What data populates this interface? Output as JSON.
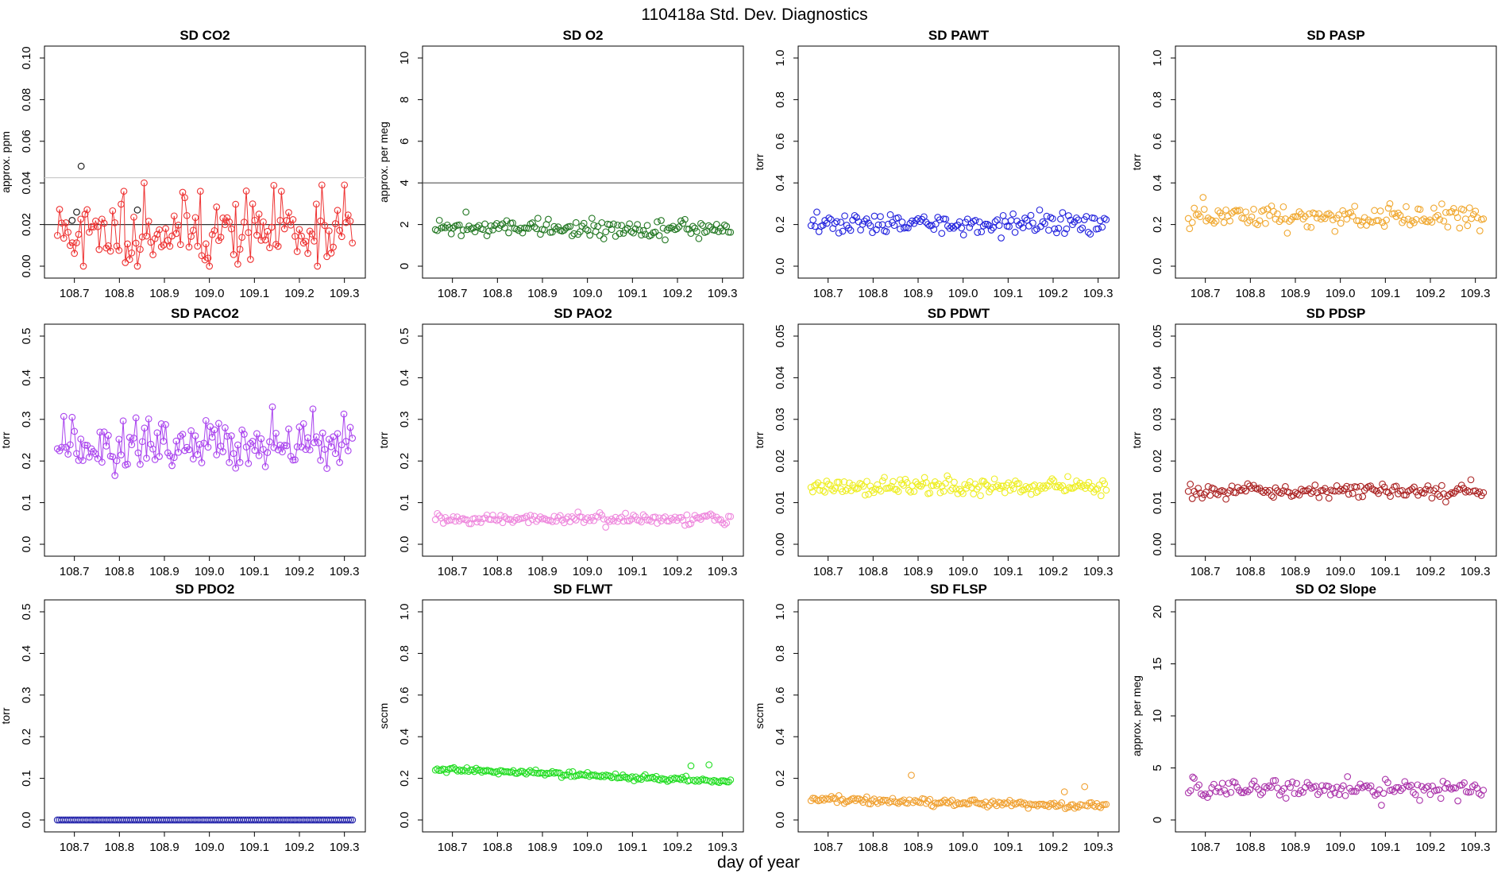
{
  "figure": {
    "title": "110418a   Std. Dev. Diagnostics",
    "xlabel": "day of year"
  },
  "chart_data": [
    {
      "type": "scatter",
      "title": "SD CO2",
      "ylabel": "approx. ppm",
      "color": "#ee3333",
      "ylim": [
        0,
        0.1
      ],
      "yticks": [
        0,
        0.02,
        0.04,
        0.06,
        0.08,
        0.1
      ],
      "ytick_labels": [
        "0.00",
        "0.02",
        "0.04",
        "0.06",
        "0.08",
        "0.10"
      ],
      "xlim": [
        108.66,
        109.32
      ],
      "xticks": [
        108.7,
        108.8,
        108.9,
        109.0,
        109.1,
        109.2,
        109.3
      ],
      "xtick_labels": [
        "108.7",
        "108.8",
        "108.9",
        "109.0",
        "109.1",
        "109.2",
        "109.3"
      ],
      "n_points": 140,
      "y_mean": 0.017,
      "y_noise": 0.008,
      "seed": 11,
      "connect": true,
      "hlines": [
        {
          "y": 0.02,
          "color": "#333333"
        },
        {
          "y": 0.0425,
          "color": "#cccccc"
        }
      ],
      "highlights": [
        {
          "x": 108.695,
          "y": 0.022,
          "color": "#222222"
        },
        {
          "x": 108.705,
          "y": 0.026,
          "color": "#222222"
        },
        {
          "x": 108.715,
          "y": 0.048,
          "color": "#222222"
        },
        {
          "x": 108.84,
          "y": 0.027,
          "color": "#222222"
        }
      ],
      "outliers": [
        {
          "x": 108.72,
          "y": 0.0
        },
        {
          "x": 108.84,
          "y": 0.0
        },
        {
          "x": 109.0,
          "y": 0.0
        },
        {
          "x": 109.24,
          "y": 0.0
        },
        {
          "x": 108.755,
          "y": 0.008
        },
        {
          "x": 108.99,
          "y": 0.003
        },
        {
          "x": 108.855,
          "y": 0.04
        },
        {
          "x": 108.81,
          "y": 0.036
        },
        {
          "x": 109.25,
          "y": 0.039
        },
        {
          "x": 109.3,
          "y": 0.039
        },
        {
          "x": 108.98,
          "y": 0.036
        },
        {
          "x": 109.16,
          "y": 0.036
        }
      ]
    },
    {
      "type": "scatter",
      "title": "SD O2",
      "ylabel": "approx. per meg",
      "color": "#227722",
      "ylim": [
        0,
        10
      ],
      "yticks": [
        0,
        2,
        4,
        6,
        8,
        10
      ],
      "ytick_labels": [
        "0",
        "2",
        "4",
        "6",
        "8",
        "10"
      ],
      "xlim": [
        108.66,
        109.32
      ],
      "xticks": [
        108.7,
        108.8,
        108.9,
        109.0,
        109.1,
        109.2,
        109.3
      ],
      "xtick_labels": [
        "108.7",
        "108.8",
        "108.9",
        "109.0",
        "109.1",
        "109.2",
        "109.3"
      ],
      "n_points": 150,
      "y_mean": 1.8,
      "y_noise": 0.18,
      "seed": 22,
      "connect": false,
      "hlines": [
        {
          "y": 4,
          "color": "#555555"
        }
      ],
      "highlights": [],
      "outliers": [
        {
          "x": 108.73,
          "y": 2.6
        },
        {
          "x": 108.89,
          "y": 2.3
        },
        {
          "x": 109.01,
          "y": 2.3
        }
      ]
    },
    {
      "type": "scatter",
      "title": "SD PAWT",
      "ylabel": "torr",
      "color": "#2222dd",
      "ylim": [
        0,
        1
      ],
      "yticks": [
        0,
        0.2,
        0.4,
        0.6,
        0.8,
        1.0
      ],
      "ytick_labels": [
        "0.0",
        "0.2",
        "0.4",
        "0.6",
        "0.8",
        "1.0"
      ],
      "xlim": [
        108.66,
        109.32
      ],
      "xticks": [
        108.7,
        108.8,
        108.9,
        109.0,
        109.1,
        109.2,
        109.3
      ],
      "xtick_labels": [
        "108.7",
        "108.8",
        "108.9",
        "109.0",
        "109.1",
        "109.2",
        "109.3"
      ],
      "n_points": 150,
      "y_mean": 0.2,
      "y_noise": 0.022,
      "seed": 33,
      "connect": false,
      "hlines": [],
      "highlights": [],
      "outliers": [
        {
          "x": 108.675,
          "y": 0.26
        },
        {
          "x": 109.17,
          "y": 0.27
        }
      ]
    },
    {
      "type": "scatter",
      "title": "SD PASP",
      "ylabel": "torr",
      "color": "#f0a830",
      "ylim": [
        0,
        1
      ],
      "yticks": [
        0,
        0.2,
        0.4,
        0.6,
        0.8,
        1.0
      ],
      "ytick_labels": [
        "0.0",
        "0.2",
        "0.4",
        "0.6",
        "0.8",
        "1.0"
      ],
      "xlim": [
        108.66,
        109.32
      ],
      "xticks": [
        108.7,
        108.8,
        108.9,
        109.0,
        109.1,
        109.2,
        109.3
      ],
      "xtick_labels": [
        "108.7",
        "108.8",
        "108.9",
        "109.0",
        "109.1",
        "109.2",
        "109.3"
      ],
      "n_points": 150,
      "y_mean": 0.235,
      "y_noise": 0.03,
      "seed": 44,
      "connect": false,
      "hlines": [],
      "highlights": [],
      "outliers": [
        {
          "x": 108.695,
          "y": 0.33
        },
        {
          "x": 109.11,
          "y": 0.3
        },
        {
          "x": 108.665,
          "y": 0.18
        },
        {
          "x": 109.31,
          "y": 0.17
        }
      ]
    },
    {
      "type": "scatter",
      "title": "SD PACO2",
      "ylabel": "torr",
      "color": "#aa44ee",
      "ylim": [
        0,
        0.5
      ],
      "yticks": [
        0,
        0.1,
        0.2,
        0.3,
        0.4,
        0.5
      ],
      "ytick_labels": [
        "0.0",
        "0.1",
        "0.2",
        "0.3",
        "0.4",
        "0.5"
      ],
      "xlim": [
        108.66,
        109.32
      ],
      "xticks": [
        108.7,
        108.8,
        108.9,
        109.0,
        109.1,
        109.2,
        109.3
      ],
      "xtick_labels": [
        "108.7",
        "108.8",
        "108.9",
        "109.0",
        "109.1",
        "109.2",
        "109.3"
      ],
      "n_points": 140,
      "y_mean": 0.235,
      "y_noise": 0.03,
      "seed": 55,
      "connect": true,
      "hlines": [],
      "highlights": [],
      "outliers": [
        {
          "x": 109.14,
          "y": 0.33
        },
        {
          "x": 109.23,
          "y": 0.325
        },
        {
          "x": 108.695,
          "y": 0.305
        },
        {
          "x": 108.79,
          "y": 0.165
        }
      ]
    },
    {
      "type": "scatter",
      "title": "SD PAO2",
      "ylabel": "torr",
      "color": "#ee88dd",
      "ylim": [
        0,
        0.5
      ],
      "yticks": [
        0,
        0.1,
        0.2,
        0.3,
        0.4,
        0.5
      ],
      "ytick_labels": [
        "0.0",
        "0.1",
        "0.2",
        "0.3",
        "0.4",
        "0.5"
      ],
      "xlim": [
        108.66,
        109.32
      ],
      "xticks": [
        108.7,
        108.8,
        108.9,
        109.0,
        109.1,
        109.2,
        109.3
      ],
      "xtick_labels": [
        "108.7",
        "108.8",
        "108.9",
        "109.0",
        "109.1",
        "109.2",
        "109.3"
      ],
      "n_points": 150,
      "y_mean": 0.06,
      "y_noise": 0.006,
      "seed": 66,
      "connect": false,
      "hlines": [],
      "highlights": [],
      "outliers": []
    },
    {
      "type": "scatter",
      "title": "SD PDWT",
      "ylabel": "torr",
      "color": "#eeee22",
      "ylim": [
        0,
        0.05
      ],
      "yticks": [
        0,
        0.01,
        0.02,
        0.03,
        0.04,
        0.05
      ],
      "ytick_labels": [
        "0.00",
        "0.01",
        "0.02",
        "0.03",
        "0.04",
        "0.05"
      ],
      "xlim": [
        108.66,
        109.32
      ],
      "xticks": [
        108.7,
        108.8,
        108.9,
        109.0,
        109.1,
        109.2,
        109.3
      ],
      "xtick_labels": [
        "108.7",
        "108.8",
        "108.9",
        "109.0",
        "109.1",
        "109.2",
        "109.3"
      ],
      "n_points": 170,
      "y_mean": 0.0138,
      "y_noise": 0.0011,
      "seed": 77,
      "connect": false,
      "hlines": [],
      "highlights": [],
      "outliers": []
    },
    {
      "type": "scatter",
      "title": "SD PDSP",
      "ylabel": "torr",
      "color": "#aa2222",
      "ylim": [
        0,
        0.05
      ],
      "yticks": [
        0,
        0.01,
        0.02,
        0.03,
        0.04,
        0.05
      ],
      "ytick_labels": [
        "0.00",
        "0.01",
        "0.02",
        "0.03",
        "0.04",
        "0.05"
      ],
      "xlim": [
        108.66,
        109.32
      ],
      "xticks": [
        108.7,
        108.8,
        108.9,
        109.0,
        109.1,
        109.2,
        109.3
      ],
      "xtick_labels": [
        "108.7",
        "108.8",
        "108.9",
        "109.0",
        "109.1",
        "109.2",
        "109.3"
      ],
      "n_points": 150,
      "y_mean": 0.0128,
      "y_noise": 0.0008,
      "seed": 88,
      "connect": false,
      "hlines": [],
      "highlights": [],
      "outliers": [
        {
          "x": 109.29,
          "y": 0.0155
        }
      ]
    },
    {
      "type": "scatter",
      "title": "SD PDO2",
      "ylabel": "torr",
      "color": "#2222aa",
      "ylim": [
        0,
        0.5
      ],
      "yticks": [
        0,
        0.1,
        0.2,
        0.3,
        0.4,
        0.5
      ],
      "ytick_labels": [
        "0.0",
        "0.1",
        "0.2",
        "0.3",
        "0.4",
        "0.5"
      ],
      "xlim": [
        108.66,
        109.32
      ],
      "xticks": [
        108.7,
        108.8,
        108.9,
        109.0,
        109.1,
        109.2,
        109.3
      ],
      "xtick_labels": [
        "108.7",
        "108.8",
        "108.9",
        "109.0",
        "109.1",
        "109.2",
        "109.3"
      ],
      "n_points": 150,
      "y_mean": 0.0,
      "y_noise": 0.0,
      "seed": 99,
      "connect": false,
      "hlines": [],
      "highlights": [],
      "outliers": []
    },
    {
      "type": "scatter",
      "title": "SD FLWT",
      "ylabel": "sccm",
      "color": "#22dd22",
      "ylim": [
        0,
        1
      ],
      "yticks": [
        0,
        0.2,
        0.4,
        0.6,
        0.8,
        1.0
      ],
      "ytick_labels": [
        "0.0",
        "0.2",
        "0.4",
        "0.6",
        "0.8",
        "1.0"
      ],
      "xlim": [
        108.66,
        109.32
      ],
      "xticks": [
        108.7,
        108.8,
        108.9,
        109.0,
        109.1,
        109.2,
        109.3
      ],
      "xtick_labels": [
        "108.7",
        "108.8",
        "108.9",
        "109.0",
        "109.1",
        "109.2",
        "109.3"
      ],
      "n_points": 160,
      "y_start": 0.245,
      "y_end": 0.185,
      "y_noise": 0.006,
      "seed": 111,
      "connect": false,
      "hlines": [],
      "highlights": [],
      "outliers": [
        {
          "x": 108.885,
          "y": 0.24
        },
        {
          "x": 109.23,
          "y": 0.26
        },
        {
          "x": 109.27,
          "y": 0.265
        }
      ]
    },
    {
      "type": "scatter",
      "title": "SD FLSP",
      "ylabel": "sccm",
      "color": "#f0a030",
      "ylim": [
        0,
        1
      ],
      "yticks": [
        0,
        0.2,
        0.4,
        0.6,
        0.8,
        1.0
      ],
      "ytick_labels": [
        "0.0",
        "0.2",
        "0.4",
        "0.6",
        "0.8",
        "1.0"
      ],
      "xlim": [
        108.66,
        109.32
      ],
      "xticks": [
        108.7,
        108.8,
        108.9,
        109.0,
        109.1,
        109.2,
        109.3
      ],
      "xtick_labels": [
        "108.7",
        "108.8",
        "108.9",
        "109.0",
        "109.1",
        "109.2",
        "109.3"
      ],
      "n_points": 160,
      "y_start": 0.1,
      "y_end": 0.065,
      "y_noise": 0.008,
      "seed": 122,
      "connect": false,
      "hlines": [],
      "highlights": [],
      "outliers": [
        {
          "x": 108.885,
          "y": 0.215
        },
        {
          "x": 109.225,
          "y": 0.135
        },
        {
          "x": 109.27,
          "y": 0.16
        }
      ]
    },
    {
      "type": "scatter",
      "title": "SD O2 Slope",
      "ylabel": "approx. per meg",
      "color": "#aa33aa",
      "ylim": [
        0,
        20
      ],
      "yticks": [
        0,
        5,
        10,
        15,
        20
      ],
      "ytick_labels": [
        "0",
        "5",
        "10",
        "15",
        "20"
      ],
      "xlim": [
        108.66,
        109.32
      ],
      "xticks": [
        108.7,
        108.8,
        108.9,
        109.0,
        109.1,
        109.2,
        109.3
      ],
      "xtick_labels": [
        "108.7",
        "108.8",
        "108.9",
        "109.0",
        "109.1",
        "109.2",
        "109.3"
      ],
      "n_points": 140,
      "y_mean": 3.0,
      "y_noise": 0.45,
      "seed": 133,
      "connect": false,
      "hlines": [],
      "highlights": [],
      "outliers": [
        {
          "x": 108.675,
          "y": 4.0
        },
        {
          "x": 109.1,
          "y": 3.9
        }
      ]
    }
  ]
}
